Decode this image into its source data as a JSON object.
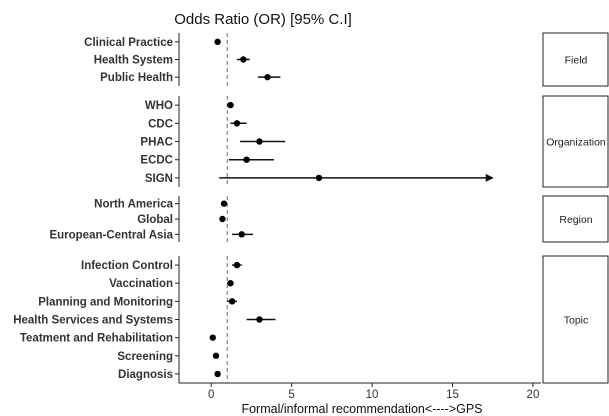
{
  "chart_data": {
    "type": "scatter",
    "subtype": "forest-plot",
    "title": "Odds Ratio (OR) [95% C.I]",
    "xlabel": "Formal/informal recommendation<---->GPS",
    "xlim": [
      -2,
      20.5
    ],
    "xticks": [
      0,
      5,
      10,
      15,
      20
    ],
    "reference_line_x": 1,
    "grid": false,
    "panels": [
      {
        "name": "Field",
        "rows": [
          {
            "label": "Clinical Practice",
            "or": 0.4,
            "lower": 0.3,
            "upper": 0.5
          },
          {
            "label": "Health System",
            "or": 2.0,
            "lower": 1.6,
            "upper": 2.4
          },
          {
            "label": "Public Health",
            "or": 3.5,
            "lower": 2.9,
            "upper": 4.3
          }
        ]
      },
      {
        "name": "Organization",
        "rows": [
          {
            "label": "WHO",
            "or": 1.2,
            "lower": 1.0,
            "upper": 1.4
          },
          {
            "label": "CDC",
            "or": 1.6,
            "lower": 1.2,
            "upper": 2.2
          },
          {
            "label": "PHAC",
            "or": 3.0,
            "lower": 1.8,
            "upper": 4.6
          },
          {
            "label": "ECDC",
            "or": 2.2,
            "lower": 1.1,
            "upper": 3.9
          },
          {
            "label": "SIGN",
            "or": 6.7,
            "lower": 0.5,
            "upper": 17.5,
            "upper_arrow": true
          }
        ]
      },
      {
        "name": "Region",
        "rows": [
          {
            "label": "North America",
            "or": 0.8,
            "lower": 0.7,
            "upper": 0.9
          },
          {
            "label": "Global",
            "or": 0.7,
            "lower": 0.6,
            "upper": 0.8
          },
          {
            "label": "European-Central Asia",
            "or": 1.9,
            "lower": 1.3,
            "upper": 2.6
          }
        ]
      },
      {
        "name": "Topic",
        "rows": [
          {
            "label": "Infection Control",
            "or": 1.6,
            "lower": 1.3,
            "upper": 1.9
          },
          {
            "label": "Vaccination",
            "or": 1.2,
            "lower": 1.0,
            "upper": 1.4
          },
          {
            "label": "Planning and Monitoring",
            "or": 1.3,
            "lower": 1.0,
            "upper": 1.6
          },
          {
            "label": "Health Services and Systems",
            "or": 3.0,
            "lower": 2.2,
            "upper": 4.0
          },
          {
            "label": "Teatment and Rehabilitation",
            "or": 0.1,
            "lower": 0.05,
            "upper": 0.15
          },
          {
            "label": "Screening",
            "or": 0.3,
            "lower": 0.2,
            "upper": 0.4
          },
          {
            "label": "Diagnosis",
            "or": 0.4,
            "lower": 0.3,
            "upper": 0.5
          }
        ]
      }
    ]
  }
}
